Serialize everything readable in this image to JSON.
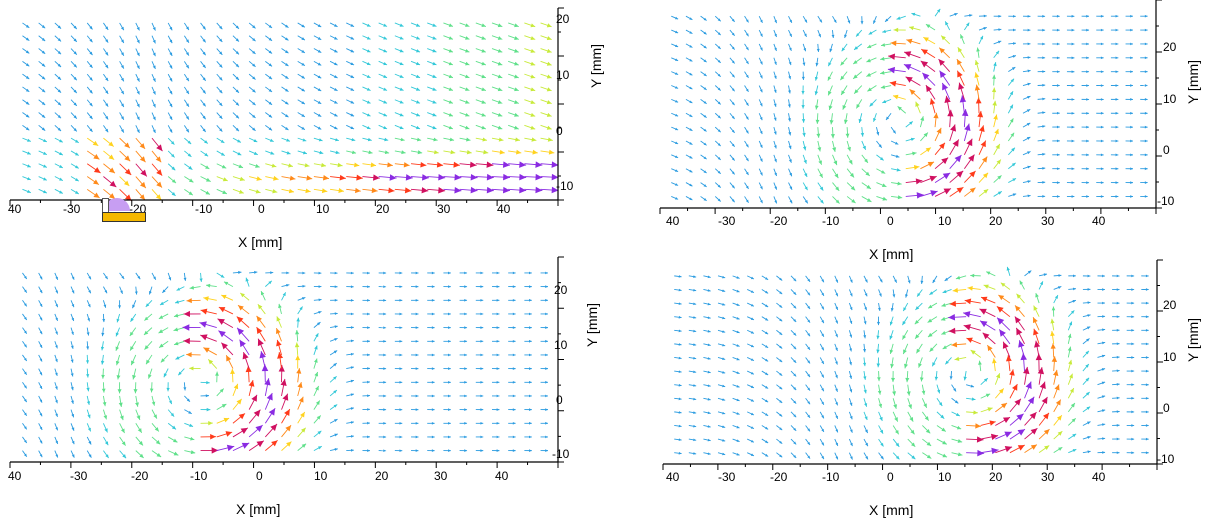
{
  "colors": {
    "scale": [
      "#1f5fd6",
      "#2a9be0",
      "#33c8d8",
      "#5fe08a",
      "#c8ea3a",
      "#ffd21e",
      "#ff8a1a",
      "#ff3a1a",
      "#d01060",
      "#8a2be2"
    ],
    "axis": "#000000"
  },
  "panels": [
    {
      "id": "top-left",
      "x_title": "X [mm]",
      "y_title": "Y [mm]",
      "x_ticks": [
        "40",
        "-30",
        "-20",
        "-10",
        "0",
        "10",
        "20",
        "30",
        "40"
      ],
      "y_ticks": [
        "20",
        "10",
        "0",
        "-10"
      ],
      "vortex": false,
      "nozzle_icon": true
    },
    {
      "id": "top-right",
      "x_title": "X [mm]",
      "y_title": "Y [mm]",
      "x_ticks": [
        "40",
        "-30",
        "-20",
        "-10",
        "0",
        "10",
        "20",
        "30",
        "40"
      ],
      "y_ticks": [
        "20",
        "10",
        "0",
        "-10"
      ],
      "vortex": true,
      "vortex_center_x": 0,
      "vortex_center_y": 1
    },
    {
      "id": "bottom-left",
      "x_title": "X [mm]",
      "y_title": "Y [mm]",
      "x_ticks": [
        "40",
        "-30",
        "-20",
        "-10",
        "0",
        "10",
        "20",
        "30",
        "40"
      ],
      "y_ticks": [
        "20",
        "10",
        "0",
        "-10"
      ],
      "vortex": true,
      "vortex_center_x": -12,
      "vortex_center_y": 0
    },
    {
      "id": "bottom-right",
      "x_title": "X [mm]",
      "y_title": "Y [mm]",
      "x_ticks": [
        "40",
        "-30",
        "-20",
        "-10",
        "0",
        "10",
        "20",
        "30",
        "40"
      ],
      "y_ticks": [
        "20",
        "10",
        "0",
        "-10"
      ],
      "vortex": true,
      "vortex_center_x": 12,
      "vortex_center_y": 2
    }
  ]
}
